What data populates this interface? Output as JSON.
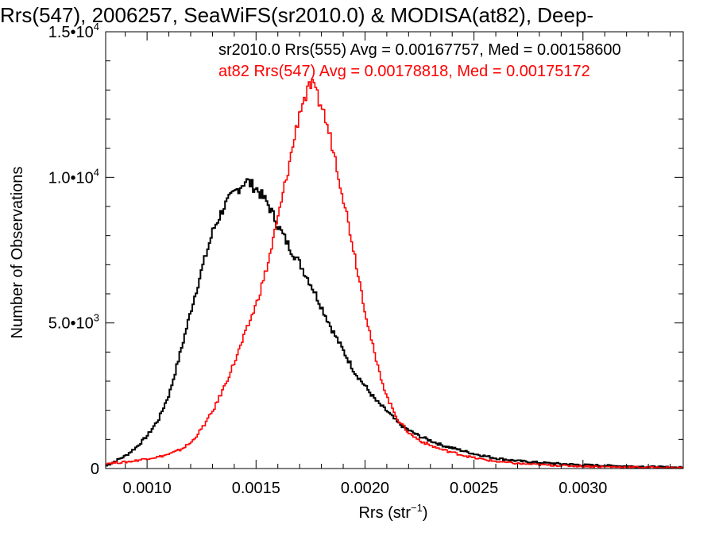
{
  "chart_data": {
    "type": "line",
    "title": "Rrs(547), 2006257, SeaWiFS(sr2010.0) & MODISA(at82), Deep-",
    "xlabel": "Rrs (str",
    "xlabel_sup": "−1",
    "xlabel_tail": ")",
    "ylabel": "Number of Observations",
    "xlim": [
      0.00081,
      0.00346
    ],
    "ylim": [
      0,
      15000
    ],
    "x_ticks": [
      {
        "value": 0.001,
        "label": "0.0010"
      },
      {
        "value": 0.0015,
        "label": "0.0015"
      },
      {
        "value": 0.002,
        "label": "0.0020"
      },
      {
        "value": 0.0025,
        "label": "0.0025"
      },
      {
        "value": 0.003,
        "label": "0.0030"
      }
    ],
    "y_ticks": [
      {
        "value": 0,
        "label": "0",
        "sup": ""
      },
      {
        "value": 5000,
        "label": "5.0•10",
        "sup": "3"
      },
      {
        "value": 10000,
        "label": "1.0•10",
        "sup": "4"
      },
      {
        "value": 15000,
        "label": "1.5•10",
        "sup": "4"
      }
    ],
    "grid": false,
    "legend": [
      {
        "text": "sr2010.0 Rrs(555) Avg = 0.00167757, Med = 0.00158600",
        "color": "#000000"
      },
      {
        "text": "at82 Rrs(547) Avg = 0.00178818, Med = 0.00175172",
        "color": "#ff0000"
      }
    ],
    "series": [
      {
        "color": "#000000",
        "points": [
          [
            0.00081,
            100
          ],
          [
            0.00085,
            250
          ],
          [
            0.0009,
            450
          ],
          [
            0.00095,
            750
          ],
          [
            0.001,
            1150
          ],
          [
            0.00105,
            1700
          ],
          [
            0.0011,
            2600
          ],
          [
            0.00115,
            4000
          ],
          [
            0.0012,
            5500
          ],
          [
            0.00125,
            6900
          ],
          [
            0.0013,
            8200
          ],
          [
            0.00135,
            9000
          ],
          [
            0.0014,
            9500
          ],
          [
            0.00145,
            9900
          ],
          [
            0.0015,
            9600
          ],
          [
            0.00155,
            9100
          ],
          [
            0.0016,
            8300
          ],
          [
            0.00165,
            7600
          ],
          [
            0.0017,
            7000
          ],
          [
            0.00175,
            6300
          ],
          [
            0.0018,
            5500
          ],
          [
            0.00185,
            4700
          ],
          [
            0.0019,
            4000
          ],
          [
            0.00195,
            3300
          ],
          [
            0.002,
            2800
          ],
          [
            0.00205,
            2300
          ],
          [
            0.0021,
            1950
          ],
          [
            0.00215,
            1550
          ],
          [
            0.0022,
            1300
          ],
          [
            0.00225,
            1100
          ],
          [
            0.0023,
            950
          ],
          [
            0.00235,
            800
          ],
          [
            0.0024,
            700
          ],
          [
            0.00245,
            600
          ],
          [
            0.0025,
            500
          ],
          [
            0.0026,
            350
          ],
          [
            0.0027,
            260
          ],
          [
            0.0028,
            200
          ],
          [
            0.0029,
            160
          ],
          [
            0.003,
            120
          ],
          [
            0.0031,
            100
          ],
          [
            0.0032,
            80
          ],
          [
            0.0033,
            60
          ],
          [
            0.0034,
            40
          ],
          [
            0.00346,
            30
          ]
        ]
      },
      {
        "color": "#ff0000",
        "points": [
          [
            0.00081,
            180
          ],
          [
            0.00085,
            200
          ],
          [
            0.0009,
            220
          ],
          [
            0.00095,
            280
          ],
          [
            0.001,
            350
          ],
          [
            0.00105,
            400
          ],
          [
            0.0011,
            500
          ],
          [
            0.00115,
            650
          ],
          [
            0.0012,
            900
          ],
          [
            0.00125,
            1400
          ],
          [
            0.0013,
            2000
          ],
          [
            0.00135,
            2800
          ],
          [
            0.0014,
            3700
          ],
          [
            0.00145,
            4700
          ],
          [
            0.0015,
            5700
          ],
          [
            0.00155,
            7000
          ],
          [
            0.0016,
            8700
          ],
          [
            0.00165,
            10500
          ],
          [
            0.0017,
            12400
          ],
          [
            0.00175,
            13200
          ],
          [
            0.0018,
            12400
          ],
          [
            0.00185,
            11000
          ],
          [
            0.0019,
            9200
          ],
          [
            0.00195,
            7300
          ],
          [
            0.002,
            5300
          ],
          [
            0.00205,
            3600
          ],
          [
            0.0021,
            2400
          ],
          [
            0.00215,
            1650
          ],
          [
            0.0022,
            1200
          ],
          [
            0.00225,
            950
          ],
          [
            0.0023,
            780
          ],
          [
            0.00235,
            650
          ],
          [
            0.0024,
            550
          ],
          [
            0.00245,
            450
          ],
          [
            0.0025,
            360
          ],
          [
            0.0026,
            240
          ],
          [
            0.0027,
            170
          ],
          [
            0.0028,
            130
          ],
          [
            0.0029,
            100
          ],
          [
            0.003,
            80
          ],
          [
            0.0031,
            60
          ],
          [
            0.0032,
            50
          ],
          [
            0.0033,
            40
          ],
          [
            0.0034,
            30
          ],
          [
            0.00346,
            25
          ]
        ]
      }
    ]
  }
}
